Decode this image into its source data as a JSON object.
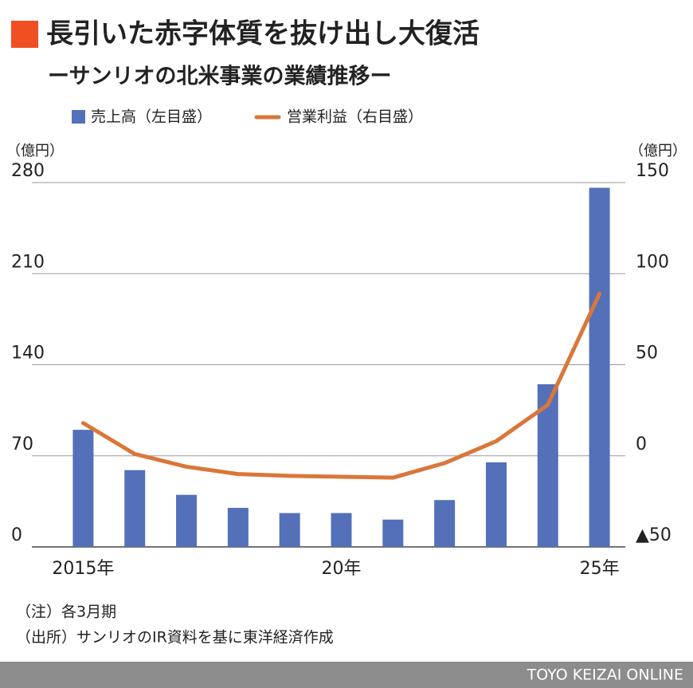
{
  "chart_data": {
    "type": "combo",
    "title": "長引いた赤字体質を抜け出し大復活",
    "subtitle": "ーサンリオの北米事業の業績推移ー",
    "y_unit": "（億円）",
    "y2_unit": "（億円）",
    "categories": [
      "2015年",
      null,
      null,
      null,
      null,
      "20年",
      null,
      null,
      null,
      null,
      "25年"
    ],
    "series": [
      {
        "name": "売上高（左目盛）",
        "type": "bar",
        "color": "#5470b8",
        "axis": "y",
        "values": [
          90,
          59,
          40,
          30,
          26,
          26,
          21,
          36,
          65,
          125,
          276
        ]
      },
      {
        "name": "営業利益（右目盛）",
        "type": "line",
        "color": "#d9773a",
        "axis": "y2",
        "values": [
          18,
          1,
          -6,
          -10,
          -11,
          -11.5,
          -12,
          -4,
          8,
          28,
          89
        ]
      }
    ],
    "ylim": [
      0,
      280
    ],
    "yticks": [
      0,
      70,
      140,
      210,
      280
    ],
    "y2lim": [
      -50,
      150
    ],
    "y2ticks": [
      {
        "value": -50,
        "label": "▲50"
      },
      0,
      50,
      100,
      150
    ],
    "grid": true,
    "notes": [
      "（注）各3月期",
      "（出所）サンリオのIR資料を基に東洋経済作成"
    ],
    "credit": "TOYO KEIZAI ONLINE"
  }
}
